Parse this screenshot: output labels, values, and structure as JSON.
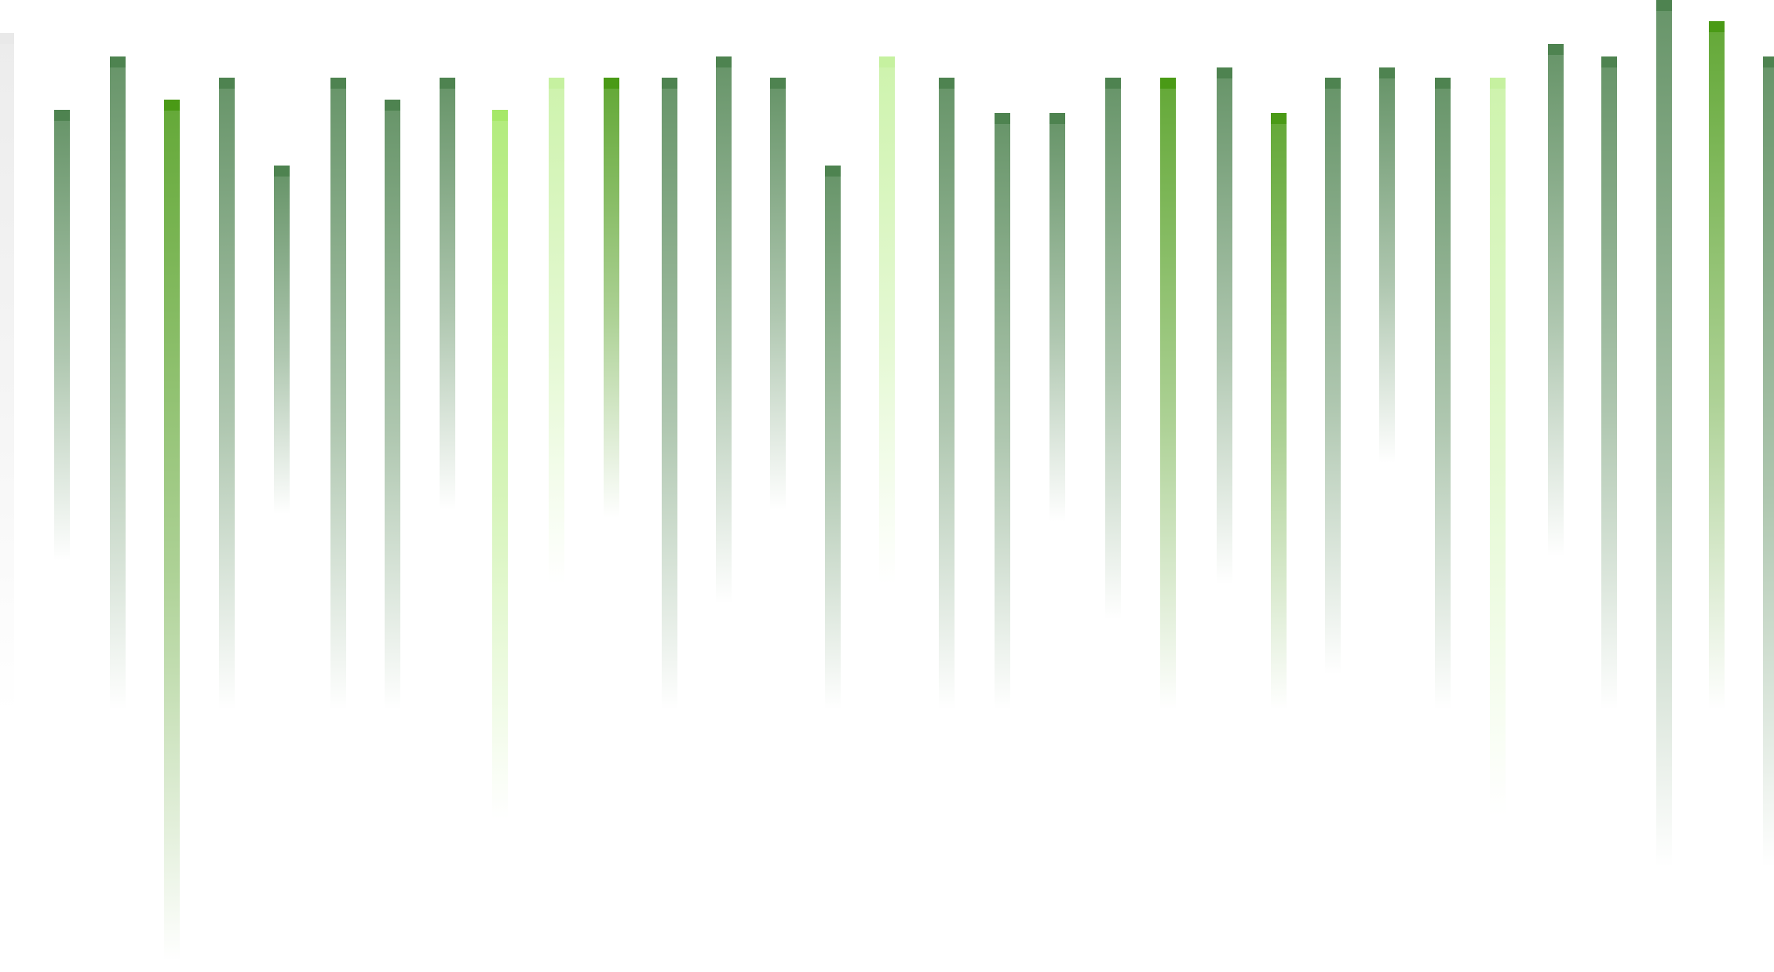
{
  "palette": {
    "dark_green": "#4E8350",
    "vivid_green": "#4A9A16",
    "light_green": "#A6E868",
    "pale_green": "#C6F1A0",
    "gray": "#E9E9E9",
    "background": "#FFFFFF"
  },
  "stripes": [
    {
      "color": "gray"
    },
    {
      "color": "dark_green"
    },
    {
      "color": "dark_green"
    },
    {
      "color": "vivid_green"
    },
    {
      "color": "dark_green"
    },
    {
      "color": "dark_green"
    },
    {
      "color": "dark_green"
    },
    {
      "color": "dark_green"
    },
    {
      "color": "dark_green"
    },
    {
      "color": "light_green"
    },
    {
      "color": "pale_green"
    },
    {
      "color": "vivid_green"
    },
    {
      "color": "dark_green"
    },
    {
      "color": "dark_green"
    },
    {
      "color": "dark_green"
    },
    {
      "color": "dark_green"
    },
    {
      "color": "pale_green"
    },
    {
      "color": "dark_green"
    },
    {
      "color": "dark_green"
    },
    {
      "color": "dark_green"
    },
    {
      "color": "dark_green"
    },
    {
      "color": "vivid_green"
    },
    {
      "color": "dark_green"
    },
    {
      "color": "vivid_green"
    },
    {
      "color": "dark_green"
    },
    {
      "color": "dark_green"
    },
    {
      "color": "dark_green"
    },
    {
      "color": "pale_green"
    },
    {
      "color": "dark_green"
    },
    {
      "color": "dark_green"
    },
    {
      "color": "dark_green"
    },
    {
      "color": "vivid_green"
    },
    {
      "color": "dark_green"
    }
  ]
}
